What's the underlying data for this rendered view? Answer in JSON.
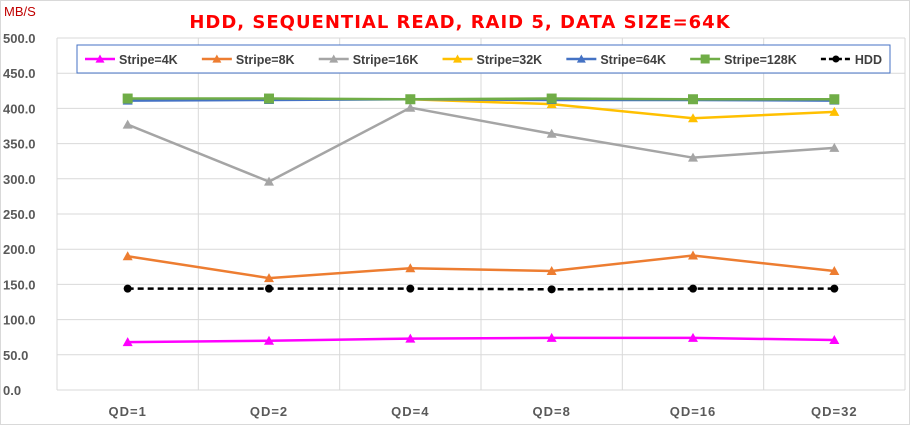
{
  "chart_data": {
    "type": "line",
    "title": "HDD, SEQUENTIAL READ, RAID 5, DATA SIZE=64K",
    "ylabel": "MB/S",
    "xlabel": "",
    "categories": [
      "QD=1",
      "QD=2",
      "QD=4",
      "QD=8",
      "QD=16",
      "QD=32"
    ],
    "ylim": [
      0,
      500
    ],
    "yticks": [
      "0.0",
      "50.0",
      "100.0",
      "150.0",
      "200.0",
      "250.0",
      "300.0",
      "350.0",
      "400.0",
      "450.0",
      "500.0"
    ],
    "grid": true,
    "legend_position": "top",
    "series": [
      {
        "name": "Stripe=4K",
        "color": "#ff00ff",
        "marker": "triangle",
        "dash": false,
        "values": [
          68,
          70,
          73,
          74,
          74,
          71
        ]
      },
      {
        "name": "Stripe=8K",
        "color": "#ed7d31",
        "marker": "triangle",
        "dash": false,
        "values": [
          190,
          159,
          173,
          169,
          191,
          169
        ]
      },
      {
        "name": "Stripe=16K",
        "color": "#a5a5a5",
        "marker": "triangle",
        "dash": false,
        "values": [
          377,
          296,
          401,
          364,
          330,
          344
        ]
      },
      {
        "name": "Stripe=32K",
        "color": "#ffc000",
        "marker": "triangle",
        "dash": false,
        "values": [
          413,
          413,
          413,
          406,
          386,
          395
        ]
      },
      {
        "name": "Stripe=64K",
        "color": "#4472c4",
        "marker": "triangle",
        "dash": false,
        "values": [
          411,
          412,
          413,
          412,
          412,
          411
        ]
      },
      {
        "name": "Stripe=128K",
        "color": "#70ad47",
        "marker": "square",
        "dash": false,
        "values": [
          414,
          414,
          413,
          414,
          413,
          413
        ]
      },
      {
        "name": "HDD",
        "color": "#000000",
        "marker": "circle",
        "dash": true,
        "values": [
          144,
          144,
          144,
          143,
          144,
          144
        ]
      }
    ]
  }
}
